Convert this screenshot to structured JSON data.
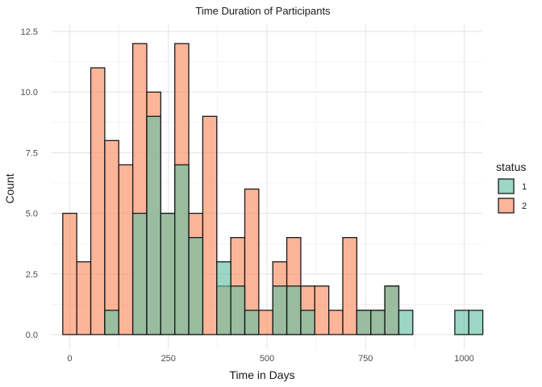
{
  "chart_data": {
    "type": "bar",
    "title": "Time Duration of Participants",
    "xlabel": "Time in Days",
    "ylabel": "Count",
    "xlim": [
      -46,
      1046
    ],
    "ylim": [
      -0.6,
      12.8
    ],
    "x_ticks": [
      0,
      250,
      500,
      750,
      1000
    ],
    "x_tick_labels": [
      "0",
      "250",
      "500",
      "750",
      "1000"
    ],
    "y_ticks": [
      0,
      2.5,
      5,
      7.5,
      10,
      12.5
    ],
    "y_tick_labels": [
      "0.0",
      "2.5",
      "5.0",
      "7.5",
      "10.0",
      "12.5"
    ],
    "grid": true,
    "bin_width": 35.5,
    "bin_centers": [
      0,
      35.5,
      71,
      106.5,
      142,
      177.5,
      213,
      248.5,
      284,
      319.5,
      355,
      390.5,
      426,
      461.5,
      497,
      532.5,
      568,
      603.5,
      639,
      674.5,
      710,
      745.5,
      781,
      816.5,
      852,
      887.5,
      923,
      958.5,
      994,
      1029.5
    ],
    "series": [
      {
        "name": "1",
        "color": "#66c2a5",
        "values": [
          0,
          0,
          0,
          1,
          0,
          5,
          9,
          5,
          7,
          4,
          0,
          3,
          2,
          1,
          0,
          2,
          2,
          1,
          0,
          0,
          0,
          1,
          1,
          2,
          1,
          0,
          0,
          0,
          1,
          1
        ]
      },
      {
        "name": "2",
        "color": "#fc8d62",
        "values": [
          5,
          3,
          11,
          8,
          7,
          12,
          10,
          5,
          12,
          5,
          9,
          2,
          4,
          6,
          1,
          3,
          4,
          2,
          2,
          1,
          4,
          1,
          1,
          2,
          0,
          0,
          0,
          0,
          0,
          0
        ]
      }
    ],
    "legend": {
      "title": "status",
      "position": "right",
      "items": [
        "1",
        "2"
      ]
    }
  }
}
